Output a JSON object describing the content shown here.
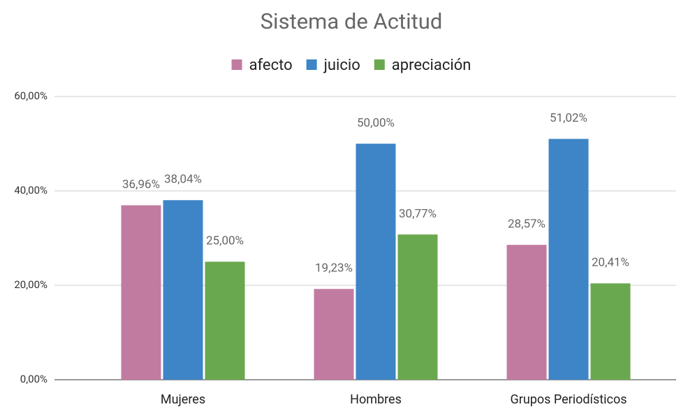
{
  "chart_data": {
    "type": "bar",
    "title": "Sistema de Actitud",
    "categories": [
      "Mujeres",
      "Hombres",
      "Grupos Periodísticos"
    ],
    "series": [
      {
        "name": "afecto",
        "color": "#c27ba0",
        "values": [
          36.96,
          19.23,
          28.57
        ],
        "value_labels": [
          "36,96%",
          "19,23%",
          "28,57%"
        ]
      },
      {
        "name": "juicio",
        "color": "#3d85c6",
        "values": [
          38.04,
          50,
          51.02
        ],
        "value_labels": [
          "38,04%",
          "50,00%",
          "51,02%"
        ]
      },
      {
        "name": "apreciación",
        "color": "#6aa84f",
        "values": [
          25,
          30.77,
          20.41
        ],
        "value_labels": [
          "25,00%",
          "30,77%",
          "20,41%"
        ]
      }
    ],
    "ylim": [
      0,
      60
    ],
    "yticks": [
      {
        "value": 0,
        "label": "0,00%"
      },
      {
        "value": 20,
        "label": "20,00%"
      },
      {
        "value": 40,
        "label": "40,00%"
      },
      {
        "value": 60,
        "label": "60,00%"
      }
    ],
    "grid": true,
    "legend": "top"
  }
}
